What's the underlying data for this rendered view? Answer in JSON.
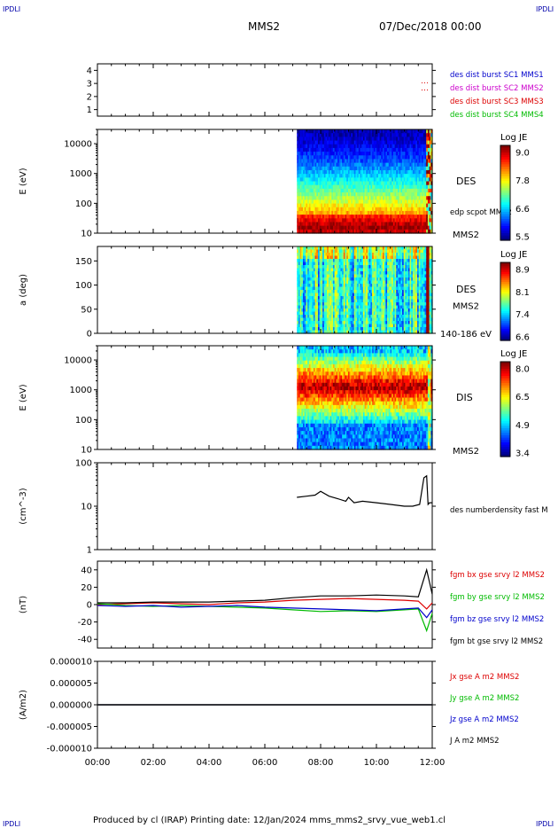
{
  "corner_label": "IPDLI",
  "header": {
    "title": "MMS2",
    "date": "07/Dec/2018 00:00"
  },
  "footer": {
    "text": "Produced by cl (IRAP)   Printing date: 12/Jan/2024   mms_mms2_srvy_vue_web1.cl"
  },
  "colors": {
    "blue": "#0000cc",
    "magenta": "#cc00cc",
    "red": "#dd0000",
    "green": "#00bb00",
    "black": "#000000"
  },
  "chart_data": [
    {
      "type": "scatter",
      "panel": "burst",
      "ylim": [
        0.5,
        4.5
      ],
      "yticks": [
        "1",
        "2",
        "3",
        "4"
      ],
      "legend": [
        {
          "label": "des dist burst SC1 MMS1",
          "color": "#0000cc"
        },
        {
          "label": "des dist burst SC2 MMS2",
          "color": "#cc00cc"
        },
        {
          "label": "des dist burst SC3 MMS3",
          "color": "#dd0000"
        },
        {
          "label": "des dist burst SC4 MMS4",
          "color": "#00bb00"
        }
      ]
    },
    {
      "type": "heatmap",
      "panel": "des-energy",
      "ylabel": "E (eV)",
      "scale": "log",
      "ylim": [
        10,
        30000
      ],
      "yticks": [
        "10",
        "100",
        "1000",
        "10000"
      ],
      "data_start_hour": 7.15,
      "label": "DES",
      "sublabel": "MMS2",
      "overlay_label": "edp scpot MMS2",
      "colorbar": {
        "title": "Log JE",
        "ticks": [
          "9.0",
          "7.8",
          "6.6",
          "5.5"
        ]
      }
    },
    {
      "type": "heatmap",
      "panel": "des-pitch",
      "ylabel": "a (deg)",
      "ylim": [
        0,
        180
      ],
      "yticks": [
        "0",
        "50",
        "100",
        "150"
      ],
      "data_start_hour": 7.15,
      "label": "DES",
      "sublabel": "MMS2",
      "energy_label": "140-186 eV",
      "colorbar": {
        "title": "Log JE",
        "ticks": [
          "8.9",
          "8.1",
          "7.4",
          "6.6"
        ]
      }
    },
    {
      "type": "heatmap",
      "panel": "dis-energy",
      "ylabel": "E (eV)",
      "scale": "log",
      "ylim": [
        10,
        30000
      ],
      "yticks": [
        "10",
        "100",
        "1000",
        "10000"
      ],
      "data_start_hour": 7.15,
      "label": "DIS",
      "sublabel": "MMS2",
      "colorbar": {
        "title": "Log JE",
        "ticks": [
          "8.0",
          "6.5",
          "4.9",
          "3.4"
        ]
      }
    },
    {
      "type": "line",
      "panel": "density",
      "ylabel": "(cm^-3)",
      "scale": "log",
      "ylim": [
        1,
        100
      ],
      "yticks": [
        "1",
        "10",
        "100"
      ],
      "series": [
        {
          "name": "des numberdensity fast M",
          "color": "#000000",
          "x": [
            7.15,
            7.5,
            7.8,
            8.0,
            8.3,
            8.6,
            8.9,
            9.0,
            9.2,
            9.5,
            10.0,
            10.5,
            11.0,
            11.3,
            11.55,
            11.7,
            11.8,
            11.85,
            11.9,
            12.0
          ],
          "y": [
            16,
            17,
            18,
            22,
            17,
            15,
            13,
            16,
            12,
            13,
            12,
            11,
            10,
            10,
            11,
            45,
            50,
            11,
            12,
            12
          ]
        }
      ]
    },
    {
      "type": "line",
      "panel": "fgm",
      "ylabel": "(nT)",
      "ylim": [
        -50,
        50
      ],
      "yticks": [
        "-40",
        "-20",
        "0",
        "20",
        "40"
      ],
      "series": [
        {
          "name": "fgm bx gse srvy l2 MMS2",
          "color": "#dd0000",
          "x": [
            0,
            1,
            2,
            3,
            4,
            5,
            6,
            7,
            8,
            9,
            10,
            11,
            11.5,
            11.8,
            12.0
          ],
          "y": [
            0,
            1,
            2,
            1,
            0,
            2,
            3,
            5,
            6,
            7,
            6,
            5,
            4,
            -5,
            2
          ]
        },
        {
          "name": "fgm by gse srvy l2 MMS2",
          "color": "#00bb00",
          "x": [
            0,
            1,
            2,
            3,
            4,
            5,
            6,
            7,
            8,
            9,
            10,
            11,
            11.5,
            11.8,
            12.0
          ],
          "y": [
            1,
            -1,
            -2,
            -1,
            -2,
            -3,
            -4,
            -6,
            -8,
            -7,
            -8,
            -6,
            -5,
            -30,
            -10
          ]
        },
        {
          "name": "fgm bz gse srvy l2 MMS2",
          "color": "#0000cc",
          "x": [
            0,
            1,
            2,
            3,
            4,
            5,
            6,
            7,
            8,
            9,
            10,
            11,
            11.5,
            11.8,
            12.0
          ],
          "y": [
            -1,
            -2,
            -1,
            -3,
            -2,
            -1,
            -3,
            -4,
            -5,
            -6,
            -7,
            -5,
            -4,
            -15,
            -6
          ]
        },
        {
          "name": "fgm bt gse srvy l2 MMS2",
          "color": "#000000",
          "x": [
            0,
            1,
            2,
            3,
            4,
            5,
            6,
            7,
            8,
            9,
            10,
            11,
            11.5,
            11.8,
            12.0
          ],
          "y": [
            2,
            2,
            3,
            3,
            3,
            4,
            5,
            8,
            10,
            10,
            11,
            10,
            9,
            40,
            12
          ]
        }
      ]
    },
    {
      "type": "line",
      "panel": "current",
      "ylabel": "(A/m2)",
      "ylim": [
        -1e-05,
        1e-05
      ],
      "yticks": [
        "-0.000010",
        "-0.000005",
        "0.000000",
        "0.000005",
        "0.000010"
      ],
      "series": [
        {
          "name": "Jx gse A m2 MMS2",
          "color": "#dd0000",
          "x": [
            0,
            11.8,
            12.0
          ],
          "y": [
            0,
            0,
            0
          ]
        },
        {
          "name": "Jy gse A m2 MMS2",
          "color": "#00bb00",
          "x": [
            0,
            11.8,
            12.0
          ],
          "y": [
            0,
            0,
            0
          ]
        },
        {
          "name": "Jz gse A m2 MMS2",
          "color": "#0000cc",
          "x": [
            0,
            11.8,
            12.0
          ],
          "y": [
            0,
            0,
            0
          ]
        },
        {
          "name": "J A m2 MMS2",
          "color": "#000000",
          "x": [
            0,
            11.8,
            12.0
          ],
          "y": [
            0,
            0,
            0
          ]
        }
      ]
    }
  ],
  "xaxis": {
    "xlim": [
      0,
      12
    ],
    "tick_labels": [
      "00:00",
      "02:00",
      "04:00",
      "06:00",
      "08:00",
      "10:00",
      "12:00"
    ]
  }
}
